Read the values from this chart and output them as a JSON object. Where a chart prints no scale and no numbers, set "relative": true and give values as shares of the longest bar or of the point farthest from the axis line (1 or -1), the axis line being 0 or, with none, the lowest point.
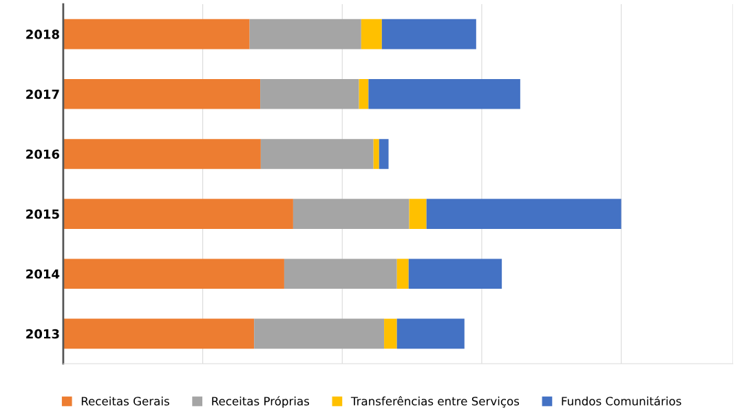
{
  "chart_data": {
    "type": "bar",
    "orientation": "horizontal",
    "stacked": true,
    "relative": true,
    "grid": "x",
    "legend": "bottom",
    "categories": [
      "2018",
      "2017",
      "2016",
      "2015",
      "2014",
      "2013"
    ],
    "series": [
      {
        "name": "Receitas Gerais",
        "color": "#ed7d31",
        "values": [
          0.334,
          0.353,
          0.354,
          0.412,
          0.396,
          0.342
        ]
      },
      {
        "name": "Receitas Próprias",
        "color": "#a5a5a5",
        "values": [
          0.2,
          0.177,
          0.202,
          0.208,
          0.202,
          0.233
        ]
      },
      {
        "name": "Transferências entre Serviços",
        "color": "#ffc000",
        "values": [
          0.037,
          0.017,
          0.01,
          0.031,
          0.021,
          0.023
        ]
      },
      {
        "name": "Fundos Comunitários",
        "color": "#4472c4",
        "values": [
          0.169,
          0.272,
          0.017,
          0.349,
          0.167,
          0.121
        ]
      }
    ]
  }
}
